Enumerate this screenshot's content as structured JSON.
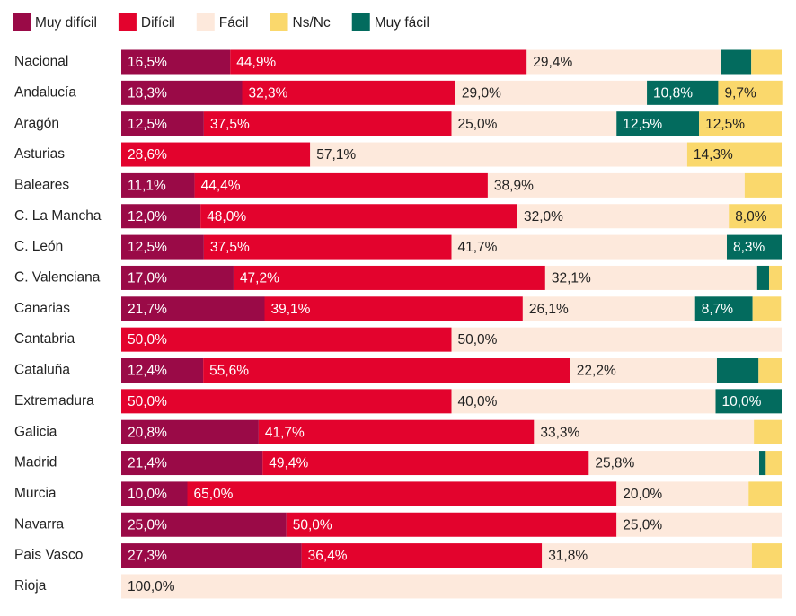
{
  "chart_data": {
    "type": "stacked-bar-horizontal",
    "categories": [
      "Nacional",
      "Andalucía",
      "Aragón",
      "Asturias",
      "Baleares",
      "C. La Mancha",
      "C. León",
      "C. Valenciana",
      "Canarias",
      "Cantabria",
      "Cataluña",
      "Extremadura",
      "Galicia",
      "Madrid",
      "Murcia",
      "Navarra",
      "Pais Vasco",
      "Rioja"
    ],
    "xlim": [
      0,
      100
    ],
    "series": [
      {
        "name": "Muy difícil",
        "color": "#9a0a47",
        "values": [
          16.5,
          18.3,
          12.5,
          0,
          11.1,
          12.0,
          12.5,
          17.0,
          21.7,
          0,
          12.4,
          0,
          20.8,
          21.4,
          10.0,
          25.0,
          27.3,
          0
        ],
        "value_labels": [
          "16,5%",
          "18,3%",
          "12,5%",
          null,
          "11,1%",
          "12,0%",
          "12,5%",
          "17,0%",
          "21,7%",
          null,
          "12,4%",
          null,
          "20,8%",
          "21,4%",
          "10,0%",
          "25,0%",
          "27,3%",
          null
        ]
      },
      {
        "name": "Difícil",
        "color": "#e3032d",
        "values": [
          44.9,
          32.3,
          37.5,
          28.6,
          44.4,
          48.0,
          37.5,
          47.2,
          39.1,
          50.0,
          55.6,
          50.0,
          41.7,
          49.4,
          65.0,
          50.0,
          36.4,
          0
        ],
        "value_labels": [
          "44,9%",
          "32,3%",
          "37,5%",
          "28,6%",
          "44,4%",
          "48,0%",
          "37,5%",
          "47,2%",
          "39,1%",
          "50,0%",
          "55,6%",
          "50,0%",
          "41,7%",
          "49,4%",
          "65,0%",
          "50,0%",
          "36,4%",
          null
        ]
      },
      {
        "name": "Fácil",
        "color": "#fde9dc",
        "values": [
          29.4,
          29.0,
          25.0,
          57.1,
          38.9,
          32.0,
          41.7,
          32.1,
          26.1,
          50.0,
          22.2,
          40.0,
          33.3,
          25.8,
          20.0,
          25.0,
          31.8,
          100.0
        ],
        "value_labels": [
          "29,4%",
          "29,0%",
          "25,0%",
          "57,1%",
          "38,9%",
          "32,0%",
          "41,7%",
          "32,1%",
          "26,1%",
          "50,0%",
          "22,2%",
          "40,0%",
          "33,3%",
          "25,8%",
          "20,0%",
          "25,0%",
          "31,8%",
          "100,0%"
        ]
      },
      {
        "name": "Ns/Nc",
        "color": "#fad86c",
        "values": [
          4.6,
          9.7,
          12.5,
          14.3,
          5.6,
          8.0,
          0,
          1.9,
          4.3,
          0,
          3.5,
          0,
          4.2,
          2.4,
          5.0,
          0,
          4.5,
          0
        ],
        "value_labels": [
          null,
          "9,7%",
          "12,5%",
          "14,3%",
          null,
          "8,0%",
          null,
          null,
          null,
          null,
          null,
          null,
          null,
          null,
          null,
          null,
          null,
          null
        ]
      },
      {
        "name": "Muy fácil",
        "color": "#036b5e",
        "values": [
          4.6,
          10.8,
          12.5,
          0,
          0,
          0,
          8.3,
          1.8,
          8.7,
          0,
          6.3,
          10.0,
          0,
          1.0,
          0,
          0,
          0,
          0
        ],
        "value_labels": [
          null,
          "10,8%",
          "12,5%",
          null,
          null,
          null,
          "8,3%",
          null,
          "8,7%",
          null,
          null,
          "10,0%",
          null,
          null,
          null,
          null,
          null,
          null
        ]
      }
    ]
  }
}
